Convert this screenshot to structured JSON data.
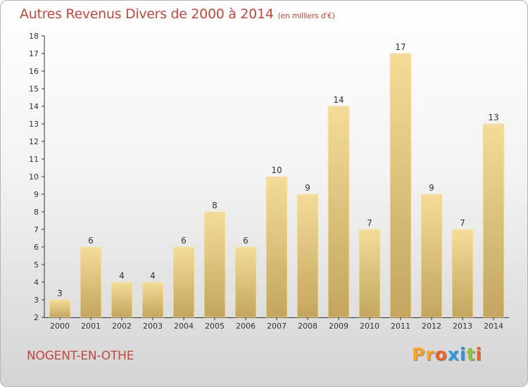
{
  "header": {
    "title": "Autres Revenus Divers de 2000 à 2014",
    "subtitle": "(en milliers d'€)"
  },
  "footer": {
    "location": "NOGENT-EN-OTHE",
    "brand": "Proxiti",
    "brand_colors": [
      "#f5a623",
      "#f5a623",
      "#e8622a",
      "#2f9be0",
      "#3a8fd8",
      "#8cc63f",
      "#e8622a"
    ]
  },
  "colors": {
    "bar_light": "#f4dc98",
    "bar_dark": "#c3a55e",
    "text_red": "#c4473d",
    "axis": "#333333"
  },
  "chart_data": {
    "type": "bar",
    "categories": [
      "2000",
      "2001",
      "2002",
      "2003",
      "2004",
      "2005",
      "2006",
      "2007",
      "2008",
      "2009",
      "2010",
      "2011",
      "2012",
      "2013",
      "2014"
    ],
    "values": [
      3,
      6,
      4,
      4,
      6,
      8,
      6,
      10,
      9,
      14,
      7,
      17,
      9,
      7,
      13
    ],
    "title": "Autres Revenus Divers de 2000 à 2014",
    "subtitle": "(en milliers d'€)",
    "xlabel": "",
    "ylabel": "",
    "ylim": [
      2,
      18
    ],
    "yticks": [
      2,
      3,
      4,
      5,
      6,
      7,
      8,
      9,
      10,
      11,
      12,
      13,
      14,
      15,
      16,
      17,
      18
    ],
    "grid": false,
    "data_labels": true
  }
}
